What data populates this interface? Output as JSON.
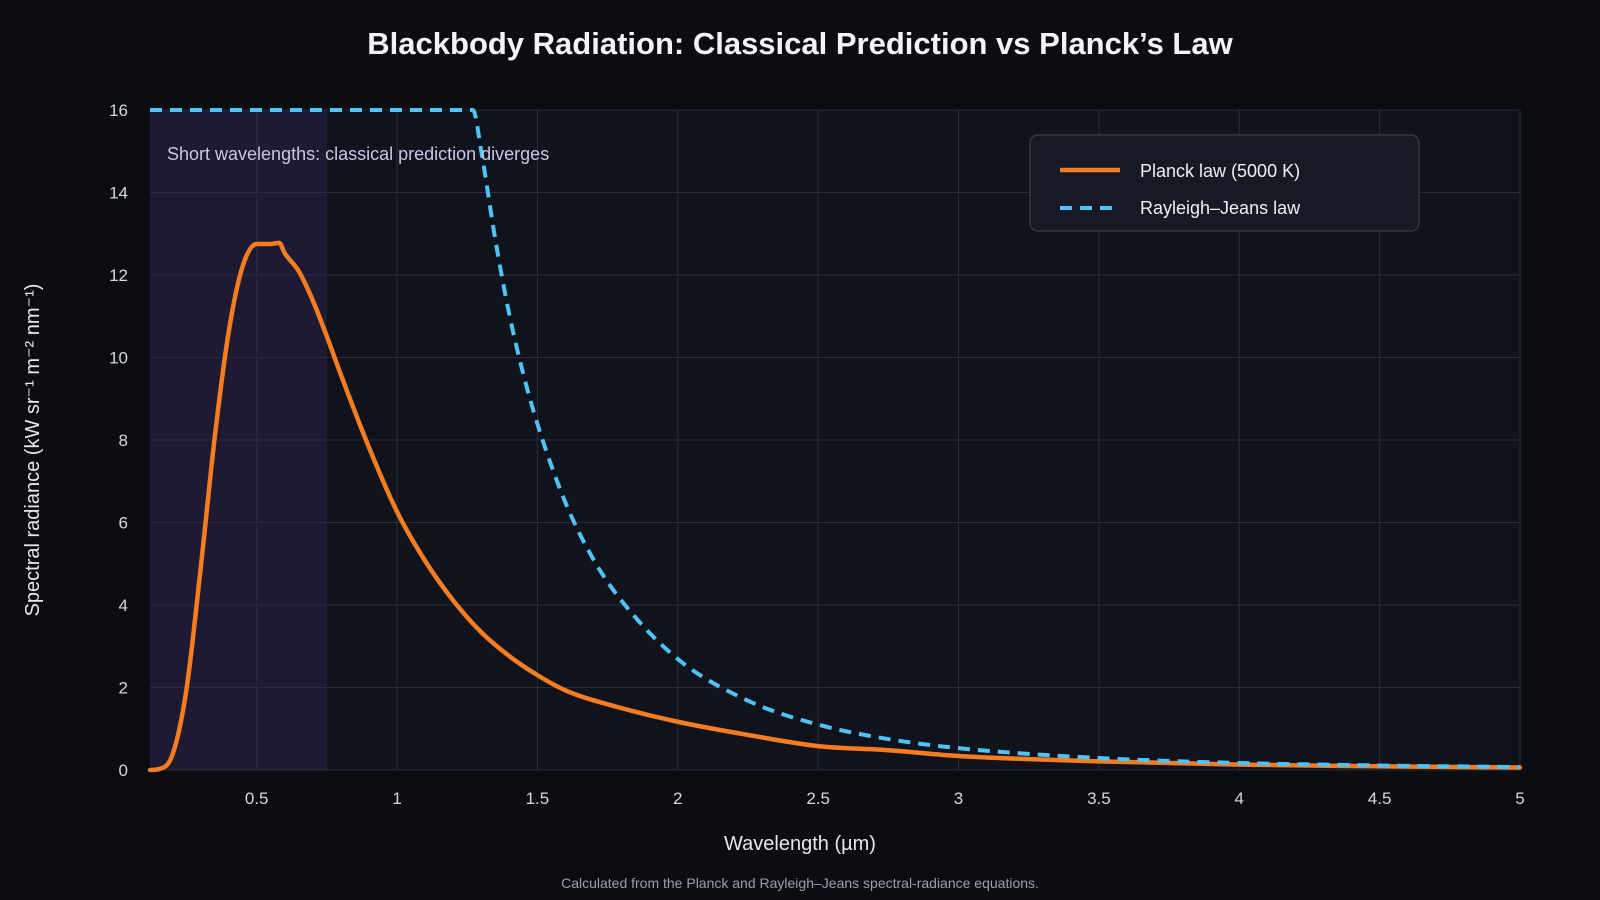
{
  "chart_data": {
    "type": "line",
    "title": "Blackbody Radiation: Classical Prediction vs Planck’s Law",
    "xlabel": "Wavelength (µm)",
    "ylabel": "Spectral radiance (kW sr⁻¹ m⁻² nm⁻¹)",
    "xlim": [
      0.12,
      5
    ],
    "ylim": [
      0,
      16
    ],
    "x_ticks": [
      0.5,
      1,
      1.5,
      2,
      2.5,
      3,
      3.5,
      4,
      4.5,
      5
    ],
    "x_tick_labels": [
      "0.5",
      "1",
      "1.5",
      "2",
      "2.5",
      "3",
      "3.5",
      "4",
      "4.5",
      "5"
    ],
    "y_ticks": [
      0,
      2,
      4,
      6,
      8,
      10,
      12,
      14,
      16
    ],
    "y_tick_labels": [
      "0",
      "2",
      "4",
      "6",
      "8",
      "10",
      "12",
      "14",
      "16"
    ],
    "grid": true,
    "legend_position": "top-right",
    "temperature_K": 5000,
    "series": [
      {
        "name": "Planck law (5000 K)",
        "color": "#f57c20",
        "style": "solid",
        "x": [
          0.12,
          0.15,
          0.2,
          0.25,
          0.3,
          0.35,
          0.4,
          0.45,
          0.5,
          0.55,
          0.58,
          0.6,
          0.65,
          0.7,
          0.75,
          0.8,
          0.9,
          1.0,
          1.1,
          1.2,
          1.3,
          1.4,
          1.5,
          1.6,
          1.8,
          2.0,
          2.25,
          2.5,
          2.75,
          3.0,
          3.5,
          4.0,
          4.5,
          5.0
        ],
        "y": [
          0.0,
          0.02,
          0.37,
          1.96,
          4.86,
          8.03,
          10.61,
          12.21,
          12.75,
          12.75,
          12.78,
          12.53,
          12.09,
          11.38,
          10.51,
          9.58,
          7.82,
          6.26,
          5.07,
          4.11,
          3.34,
          2.76,
          2.3,
          1.93,
          1.5,
          1.17,
          0.85,
          0.58,
          0.48,
          0.34,
          0.21,
          0.13,
          0.09,
          0.06
        ]
      },
      {
        "name": "Rayleigh–Jeans law",
        "color": "#4fc3f7",
        "style": "dashed",
        "x": [
          0.12,
          1.27,
          1.3,
          1.35,
          1.4,
          1.45,
          1.5,
          1.6,
          1.7,
          1.8,
          2.0,
          2.25,
          2.5,
          2.75,
          3.0,
          3.5,
          4.0,
          4.5,
          5.0
        ],
        "y": [
          16.0,
          16.0,
          15.0,
          12.86,
          11.04,
          9.59,
          8.39,
          6.48,
          5.1,
          4.1,
          2.69,
          1.68,
          1.1,
          0.75,
          0.53,
          0.29,
          0.17,
          0.11,
          0.07
        ]
      }
    ],
    "highlight": {
      "x_range": [
        0.12,
        0.75
      ],
      "label": "Short wavelengths: classical prediction diverges",
      "color": "#1e1a33"
    },
    "footnote": "Calculated from the Planck and Rayleigh–Jeans spectral-radiance equations."
  },
  "colors": {
    "background": "#0b0d12",
    "plot_background": "#10131b",
    "grid": "#2a2e38",
    "planck": "#f57c20",
    "rayleigh_jeans": "#4fc3f7"
  }
}
